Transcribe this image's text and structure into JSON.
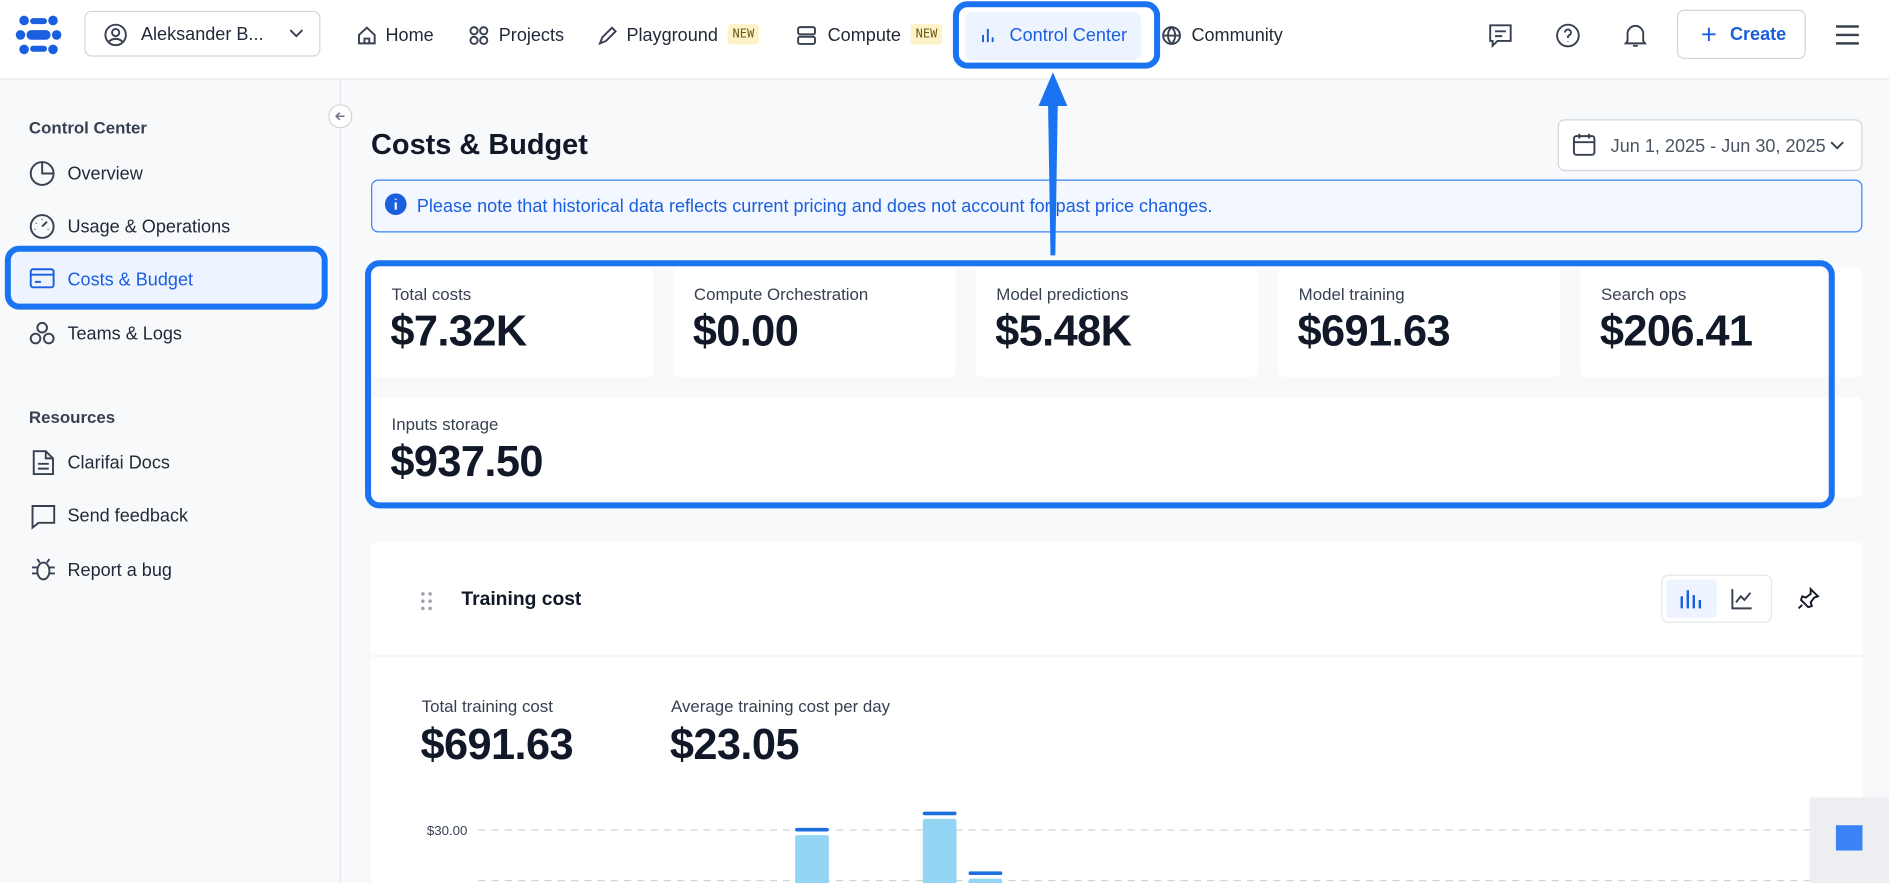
{
  "nav": {
    "user": "Aleksander B...",
    "items": [
      "Home",
      "Projects",
      "Playground",
      "Compute",
      "Control Center",
      "Community"
    ],
    "badges": [
      "NEW",
      "NEW"
    ],
    "create": "Create"
  },
  "sidebar": {
    "section": "Control Center",
    "items": [
      "Overview",
      "Usage & Operations",
      "Costs & Budget",
      "Teams & Logs"
    ],
    "resources_title": "Resources",
    "resources": [
      "Clarifai Docs",
      "Send feedback",
      "Report a bug"
    ]
  },
  "page": {
    "title": "Costs & Budget",
    "date_range": "Jun 1, 2025 - Jun 30, 2025",
    "notice": "Please note that historical data reflects current pricing and does not account for past price changes."
  },
  "stats": [
    {
      "label": "Total costs",
      "value": "$7.32K"
    },
    {
      "label": "Compute Orchestration",
      "value": "$0.00"
    },
    {
      "label": "Model predictions",
      "value": "$5.48K"
    },
    {
      "label": "Model training",
      "value": "$691.63"
    },
    {
      "label": "Search ops",
      "value": "$206.41"
    },
    {
      "label": "Inputs storage",
      "value": "$937.50"
    }
  ],
  "panel": {
    "title": "Training cost",
    "summary": [
      {
        "label": "Total training cost",
        "value": "$691.63"
      },
      {
        "label": "Average training cost per day",
        "value": "$23.05"
      }
    ]
  },
  "chart_data": {
    "type": "bar",
    "values": [
      29.5,
      31.1,
      25.2
    ],
    "ylim": [
      25,
      32
    ],
    "yticks": [
      {
        "value": 30,
        "label": "$30.00"
      }
    ],
    "color": "#93d5f3",
    "cap_color": "#1d6fe0",
    "grid": true
  }
}
